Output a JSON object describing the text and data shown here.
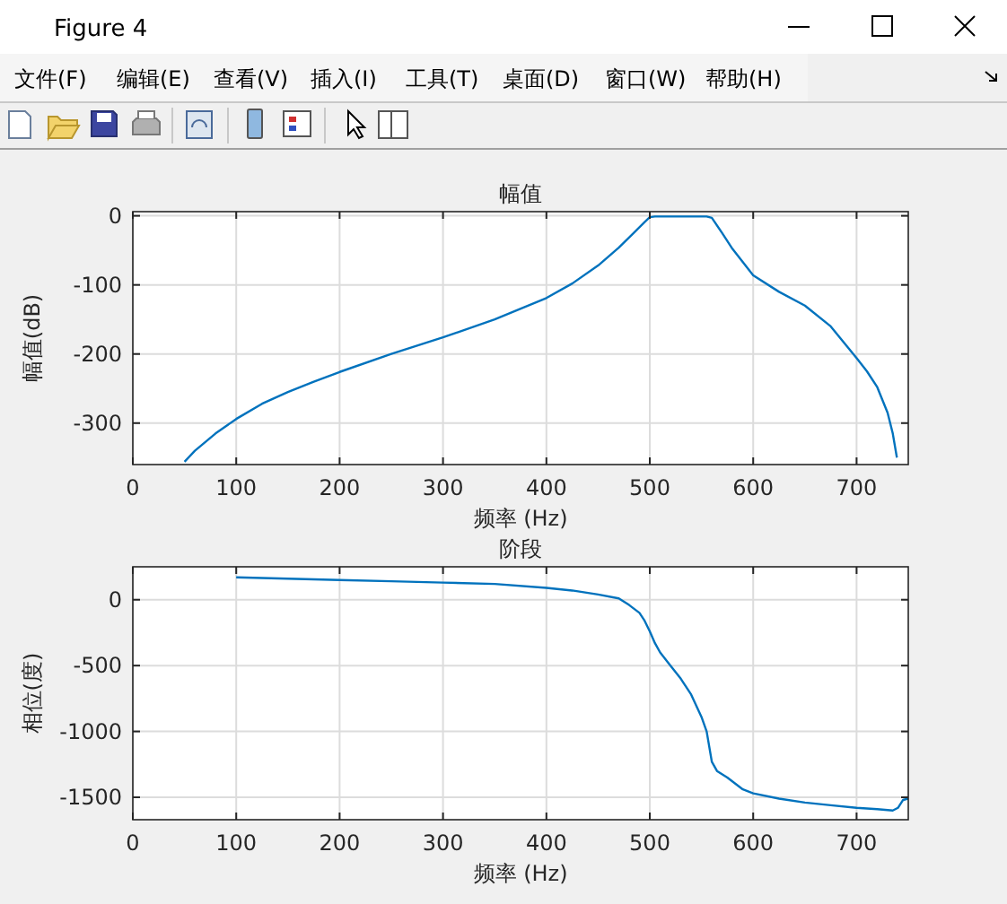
{
  "chart_data": [
    {
      "type": "other",
      "title": "Figure 4",
      "annotations": [
        "文件(F)",
        "编辑(E)",
        "查看(V)",
        "插入(I)",
        "工具(T)",
        "桌面(D)",
        "窗口(W)",
        "帮助(H)"
      ]
    },
    {
      "type": "line",
      "title": "幅值",
      "xlabel": "频率 (Hz)",
      "ylabel": "幅值(dB)",
      "xlim": [
        0,
        750
      ],
      "ylim": [
        -360,
        6
      ],
      "xticks": [
        0,
        100,
        200,
        300,
        400,
        500,
        600,
        700
      ],
      "yticks": [
        -300,
        -200,
        -100,
        0
      ],
      "grid": true,
      "series": [
        {
          "color": "#0072bd",
          "x": [
            50,
            60,
            80,
            100,
            125,
            150,
            175,
            200,
            250,
            300,
            350,
            400,
            425,
            450,
            470,
            485,
            495,
            500,
            505,
            530,
            555,
            560,
            570,
            580,
            600,
            625,
            650,
            675,
            700,
            710,
            720,
            730,
            735,
            739
          ],
          "values": [
            -356,
            -340,
            -315,
            -294,
            -272,
            -255,
            -240,
            -226,
            -200,
            -176,
            -150,
            -119,
            -98,
            -72,
            -46,
            -24,
            -9,
            -2,
            -1,
            -1,
            -1,
            -3,
            -25,
            -48,
            -86,
            -110,
            -130,
            -160,
            -206,
            -225,
            -248,
            -285,
            -315,
            -350
          ]
        }
      ]
    },
    {
      "type": "line",
      "title": "阶段",
      "xlabel": "频率 (Hz)",
      "ylabel": "相位(度)",
      "xlim": [
        0,
        750
      ],
      "ylim": [
        -1670,
        250
      ],
      "xticks": [
        0,
        100,
        200,
        300,
        400,
        500,
        600,
        700
      ],
      "yticks": [
        -1500,
        -1000,
        -500,
        0
      ],
      "grid": true,
      "series": [
        {
          "color": "#0072bd",
          "x": [
            100,
            150,
            200,
            250,
            300,
            350,
            400,
            425,
            450,
            470,
            480,
            490,
            495,
            500,
            505,
            510,
            520,
            530,
            540,
            550,
            555,
            560,
            565,
            575,
            590,
            600,
            625,
            650,
            675,
            700,
            720,
            735,
            740,
            745,
            750
          ],
          "values": [
            170,
            160,
            150,
            140,
            130,
            120,
            90,
            70,
            40,
            10,
            -40,
            -100,
            -160,
            -240,
            -330,
            -400,
            -500,
            -600,
            -720,
            -890,
            -1000,
            -1230,
            -1300,
            -1350,
            -1440,
            -1470,
            -1510,
            -1540,
            -1560,
            -1580,
            -1590,
            -1600,
            -1580,
            -1520,
            -1510
          ]
        }
      ]
    }
  ]
}
